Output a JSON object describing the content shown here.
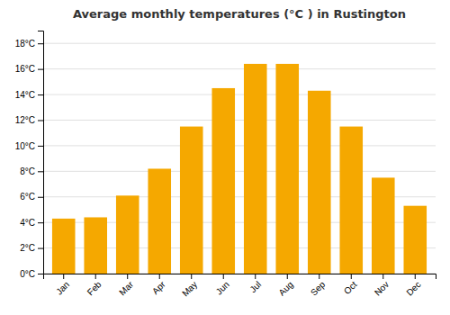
{
  "chart_data": {
    "type": "bar",
    "title": "Average monthly temperatures (°C ) in Rustington",
    "categories": [
      "Jan",
      "Feb",
      "Mar",
      "Apr",
      "May",
      "Jun",
      "Jul",
      "Aug",
      "Sep",
      "Oct",
      "Nov",
      "Dec"
    ],
    "values": [
      4.3,
      4.4,
      6.1,
      8.2,
      11.5,
      14.5,
      16.4,
      16.4,
      14.3,
      11.5,
      7.5,
      5.3
    ],
    "color": "#F5A800",
    "ylim": [
      0,
      19
    ],
    "yticks": [
      {
        "value": 0,
        "label": "0°C"
      },
      {
        "value": 2,
        "label": "2°C"
      },
      {
        "value": 4,
        "label": "4°C"
      },
      {
        "value": 6,
        "label": "6°C"
      },
      {
        "value": 8,
        "label": "8°C"
      },
      {
        "value": 10,
        "label": "10°C"
      },
      {
        "value": 12,
        "label": "12°C"
      },
      {
        "value": 14,
        "label": "14°C"
      },
      {
        "value": 16,
        "label": "16°C"
      },
      {
        "value": 18,
        "label": "18°C"
      }
    ],
    "grid": true
  }
}
